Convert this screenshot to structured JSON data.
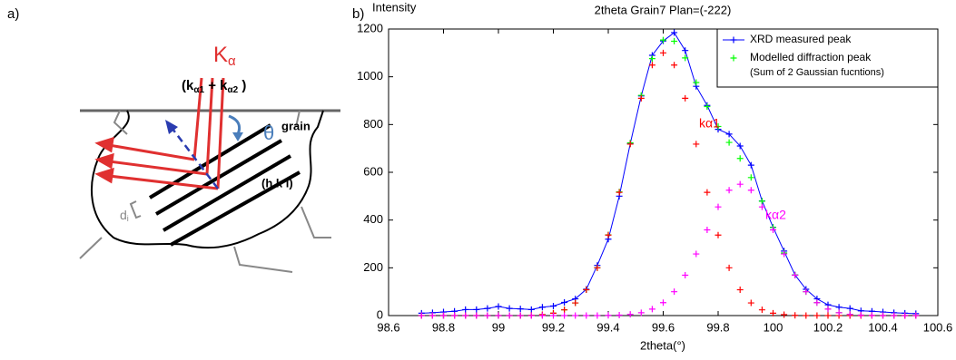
{
  "panel_labels": [
    "a)",
    "b)"
  ],
  "diagram": {
    "k_alpha": [
      "K",
      "α"
    ],
    "k_alpha_sum": [
      "(k",
      "α1",
      " + k",
      "α2",
      " )"
    ],
    "theta": "θ",
    "grain": "grain",
    "hkl": "(h k l)",
    "d_spacing": [
      "d",
      "i"
    ]
  },
  "chart_data": {
    "type": "line",
    "title": "2theta Grain7 Plan=(-222)",
    "x_label": "2theta(°)",
    "y_label": "Intensity",
    "x": [
      98.72,
      98.76,
      98.8,
      98.84,
      98.88,
      98.92,
      98.96,
      99,
      99.04,
      99.08,
      99.12,
      99.16,
      99.2,
      99.24,
      99.28,
      99.32,
      99.36,
      99.4,
      99.44,
      99.48,
      99.52,
      99.56,
      99.6,
      99.64,
      99.68,
      99.72,
      99.76,
      99.8,
      99.84,
      99.88,
      99.92,
      99.96,
      100,
      100.04,
      100.08,
      100.12,
      100.16,
      100.2,
      100.24,
      100.28,
      100.32,
      100.36,
      100.4,
      100.44,
      100.48,
      100.52
    ],
    "series": [
      {
        "name": "XRD measured peak",
        "color": "#0000ff",
        "mode": "lines+markers",
        "in_legend": true,
        "values": [
          10,
          12,
          15,
          18,
          25,
          25,
          30,
          38,
          30,
          28,
          25,
          35,
          40,
          55,
          70,
          110,
          210,
          320,
          500,
          720,
          920,
          1090,
          1150,
          1185,
          1110,
          960,
          880,
          780,
          760,
          710,
          630,
          480,
          370,
          270,
          170,
          110,
          70,
          45,
          35,
          30,
          20,
          18,
          15,
          12,
          10,
          8
        ]
      },
      {
        "name": "Modelled diffraction peak",
        "note": "(Sum of 2 Gaussian fucntions)",
        "color": "#00ff00",
        "mode": "markers",
        "in_legend": true,
        "values": [
          0,
          0,
          0,
          0,
          0,
          0,
          0,
          0,
          0,
          0,
          1,
          4,
          10,
          24,
          53,
          108,
          200,
          338,
          518,
          723,
          922,
          1076,
          1154,
          1149,
          1079,
          976,
          875,
          792,
          725,
          658,
          578,
          479,
          369,
          262,
          170,
          100,
          54,
          27,
          12,
          5,
          2,
          1,
          0,
          0,
          0,
          0
        ]
      },
      {
        "name": "kα1",
        "color": "#ff0000",
        "mode": "markers",
        "in_legend": false,
        "values": [
          0,
          0,
          0,
          0,
          0,
          0,
          0,
          0,
          0,
          0,
          1,
          4,
          10,
          24,
          53,
          108,
          200,
          337,
          516,
          718,
          910,
          1049,
          1100,
          1049,
          910,
          718,
          516,
          337,
          200,
          108,
          53,
          24,
          10,
          4,
          1,
          0,
          0,
          0,
          0,
          0,
          0,
          0,
          0,
          0,
          0,
          0
        ]
      },
      {
        "name": "kα2",
        "color": "#ff00ff",
        "mode": "markers",
        "in_legend": false,
        "values": [
          0,
          0,
          0,
          0,
          0,
          0,
          0,
          0,
          0,
          0,
          0,
          0,
          0,
          0,
          0,
          0,
          0,
          1,
          2,
          5,
          12,
          27,
          54,
          100,
          169,
          258,
          359,
          455,
          525,
          550,
          525,
          455,
          359,
          258,
          169,
          100,
          54,
          27,
          12,
          5,
          2,
          1,
          0,
          0,
          0,
          0
        ]
      }
    ],
    "xlim": [
      98.6,
      100.6
    ],
    "ylim": [
      0,
      1200
    ],
    "xticks": [
      98.6,
      98.8,
      99,
      99.2,
      99.4,
      99.6,
      99.8,
      100,
      100.2,
      100.4,
      100.6
    ],
    "yticks": [
      0,
      200,
      400,
      600,
      800,
      1000,
      1200
    ],
    "legend": "upper right"
  }
}
